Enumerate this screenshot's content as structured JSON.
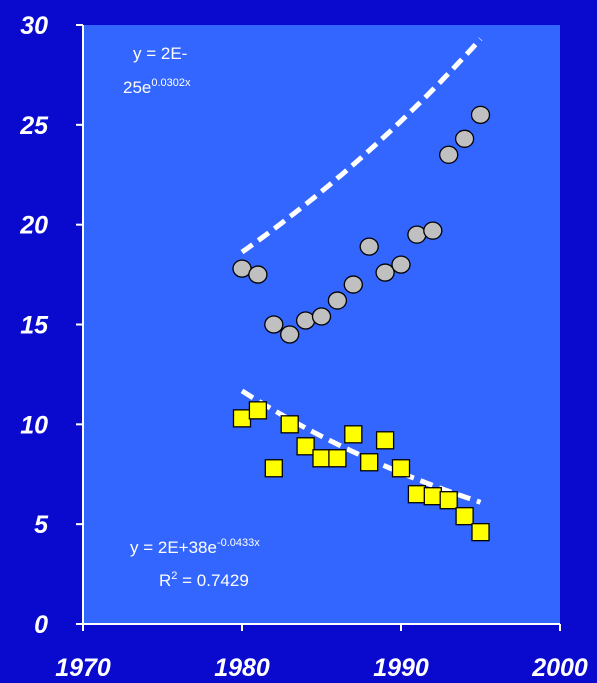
{
  "chart_data": {
    "type": "scatter",
    "title": "",
    "xlabel": "",
    "ylabel": "",
    "xlim": [
      1970,
      2000
    ],
    "ylim": [
      0,
      30
    ],
    "x_ticks": [
      "1970",
      "1980",
      "1990",
      "2000"
    ],
    "y_ticks": [
      "0",
      "5",
      "10",
      "15",
      "20",
      "25",
      "30"
    ],
    "grid": false,
    "colors": {
      "background": "#0A0ACF",
      "plot_area": "#3366FF",
      "axis": "#FFFFFF",
      "trend": "#FFFFFF"
    },
    "series": [
      {
        "marker": "circle",
        "color": "#C0C0C0",
        "x": [
          1980,
          1981,
          1982,
          1983,
          1984,
          1985,
          1986,
          1987,
          1988,
          1989,
          1990,
          1991,
          1992,
          1993,
          1994,
          1995
        ],
        "y": [
          17.8,
          17.5,
          15.0,
          14.5,
          15.2,
          15.4,
          16.2,
          17.0,
          18.9,
          17.6,
          18.0,
          19.5,
          19.7,
          23.5,
          24.3,
          25.5
        ],
        "trendline": {
          "type": "exponential",
          "a": 2e-25,
          "b": 0.0302,
          "x_range": [
            1980,
            1995
          ],
          "equation_line1": "y = 2E-",
          "equation_line2_base": "25e",
          "equation_line2_exp": "0.0302x"
        }
      },
      {
        "marker": "square",
        "color": "#FFFF00",
        "x": [
          1980,
          1981,
          1982,
          1983,
          1984,
          1985,
          1986,
          1987,
          1988,
          1989,
          1990,
          1991,
          1992,
          1993,
          1994,
          1995
        ],
        "y": [
          10.3,
          10.7,
          7.8,
          10.0,
          8.9,
          8.3,
          8.3,
          9.5,
          8.1,
          9.2,
          7.8,
          6.5,
          6.4,
          6.2,
          5.4,
          4.6
        ],
        "trendline": {
          "type": "exponential",
          "a": 2e+38,
          "b": -0.0433,
          "x_range": [
            1980,
            1995
          ],
          "equation_base": "y = 2E+38e",
          "equation_exp": "-0.0433x",
          "r2_label": "R",
          "r2_sup": "2",
          "r2_value": " = 0.7429"
        }
      }
    ]
  }
}
